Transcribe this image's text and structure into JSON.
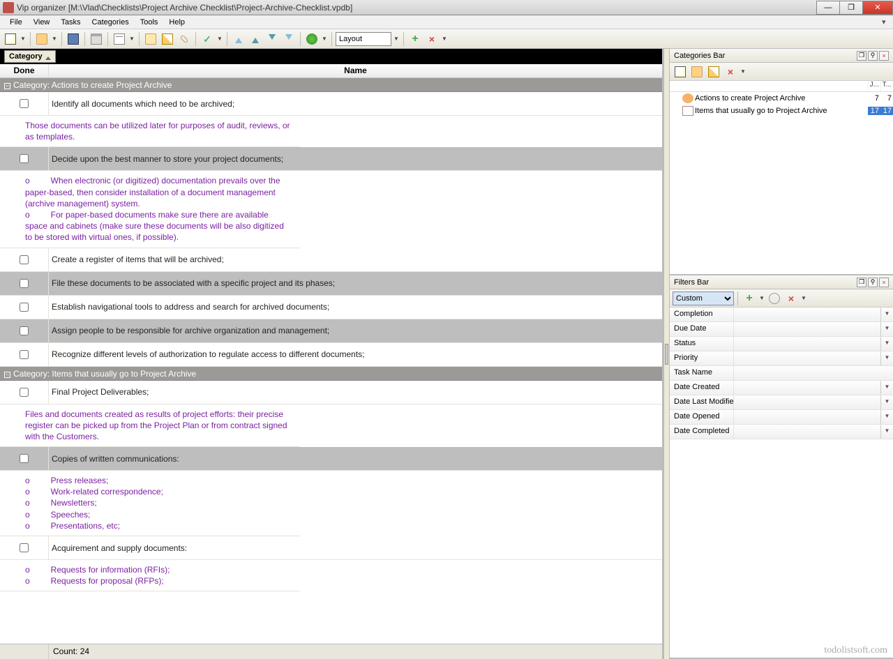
{
  "title": "Vip organizer [M:\\Vlad\\Checklists\\Project Archive Checklist\\Project-Archive-Checklist.vpdb]",
  "menu": [
    "File",
    "View",
    "Tasks",
    "Categories",
    "Tools",
    "Help"
  ],
  "toolbar": {
    "layout_label": "Layout"
  },
  "grouping": {
    "chip": "Category"
  },
  "columns": {
    "done": "Done",
    "name": "Name"
  },
  "groups": [
    {
      "title": "Category: Actions to create Project Archive",
      "rows": [
        {
          "type": "task",
          "alt": false,
          "name": "Identify all documents which need to be archived;"
        },
        {
          "type": "note",
          "alt": false,
          "text": "Those documents can be utilized later for purposes of audit, reviews, or as templates."
        },
        {
          "type": "task",
          "alt": true,
          "name": "Decide upon the best manner to store your project documents;"
        },
        {
          "type": "note",
          "alt": false,
          "html": "o&nbsp;&nbsp;&nbsp;&nbsp;&nbsp;&nbsp;&nbsp;&nbsp;&nbsp;When electronic (or digitized) documentation prevails over the paper-based, then consider installation of a document management (archive management) system.<br>o&nbsp;&nbsp;&nbsp;&nbsp;&nbsp;&nbsp;&nbsp;&nbsp;&nbsp;For paper-based documents make sure there are available space and cabinets (make sure these documents will be also digitized to be stored with virtual ones, if possible)."
        },
        {
          "type": "task",
          "alt": false,
          "name": "Create a register of items that will be archived;"
        },
        {
          "type": "task",
          "alt": true,
          "name": "File these documents to be associated with a specific project and its phases;"
        },
        {
          "type": "task",
          "alt": false,
          "name": "Establish navigational tools to address and search for archived documents;"
        },
        {
          "type": "task",
          "alt": true,
          "name": "Assign people to be responsible for archive organization and management;"
        },
        {
          "type": "task",
          "alt": false,
          "name": "Recognize different levels of authorization to regulate access to different documents;"
        }
      ]
    },
    {
      "title": "Category: Items that usually go to Project Archive",
      "rows": [
        {
          "type": "task",
          "alt": false,
          "name": "Final Project Deliverables;"
        },
        {
          "type": "note",
          "alt": false,
          "text": "Files and documents created as results of project efforts: their precise register can be picked up from the Project Plan or from contract signed with the Customers."
        },
        {
          "type": "task",
          "alt": true,
          "name": "Copies of written communications:"
        },
        {
          "type": "note",
          "alt": false,
          "html": "o&nbsp;&nbsp;&nbsp;&nbsp;&nbsp;&nbsp;&nbsp;&nbsp;&nbsp;Press releases;<br>o&nbsp;&nbsp;&nbsp;&nbsp;&nbsp;&nbsp;&nbsp;&nbsp;&nbsp;Work-related correspondence;<br>o&nbsp;&nbsp;&nbsp;&nbsp;&nbsp;&nbsp;&nbsp;&nbsp;&nbsp;Newsletters;<br>o&nbsp;&nbsp;&nbsp;&nbsp;&nbsp;&nbsp;&nbsp;&nbsp;&nbsp;Speeches;<br>o&nbsp;&nbsp;&nbsp;&nbsp;&nbsp;&nbsp;&nbsp;&nbsp;&nbsp;Presentations, etc;"
        },
        {
          "type": "task",
          "alt": false,
          "name": "Acquirement and supply documents:"
        },
        {
          "type": "note",
          "alt": false,
          "html": "o&nbsp;&nbsp;&nbsp;&nbsp;&nbsp;&nbsp;&nbsp;&nbsp;&nbsp;Requests for information (RFIs);<br>o&nbsp;&nbsp;&nbsp;&nbsp;&nbsp;&nbsp;&nbsp;&nbsp;&nbsp;Requests for proposal (RFPs);"
        }
      ]
    }
  ],
  "footer": {
    "count_label": "Count: 24"
  },
  "categories_panel": {
    "title": "Categories Bar",
    "cols": [
      "J...",
      "T..."
    ],
    "rows": [
      {
        "icon": "people",
        "label": "Actions to create Project Archive",
        "n1": "7",
        "n2": "7",
        "sel": false
      },
      {
        "icon": "doc",
        "label": "Items that usually go to Project Archive",
        "n1": "17",
        "n2": "17",
        "sel": true
      }
    ]
  },
  "filters_panel": {
    "title": "Filters Bar",
    "combo": "Custom",
    "fields": [
      "Completion",
      "Due Date",
      "Status",
      "Priority",
      "Task Name",
      "Date Created",
      "Date Last Modified",
      "Date Opened",
      "Date Completed"
    ]
  },
  "watermark": "todolistsoft.com",
  "colors": {
    "note_text": "#7b1fa2",
    "alt_row": "#bebebe",
    "cat_row": "#9b9a96",
    "selection": "#3a7bd5"
  }
}
